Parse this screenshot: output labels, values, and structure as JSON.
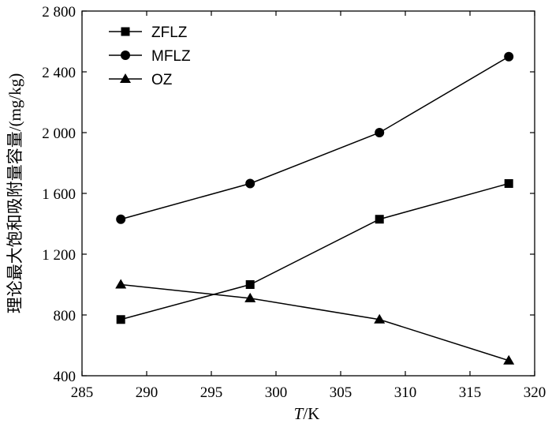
{
  "chart_data": {
    "type": "line",
    "xlabel_italic": "T",
    "xlabel_rest": "/K",
    "ylabel": "理论最大饱和吸附量容量/(mg/kg)",
    "xlim": [
      285,
      320
    ],
    "ylim": [
      400,
      2800
    ],
    "x_ticks": [
      285,
      290,
      295,
      300,
      305,
      310,
      315,
      320
    ],
    "x_tick_labels": [
      "285",
      "290",
      "295",
      "300",
      "305",
      "310",
      "315",
      "320"
    ],
    "y_ticks": [
      400,
      800,
      1200,
      1600,
      2000,
      2400,
      2800
    ],
    "y_tick_labels": [
      "400",
      "800",
      "1 200",
      "1 600",
      "2 000",
      "2 400",
      "2 800"
    ],
    "x": [
      288,
      298,
      308,
      318
    ],
    "series": [
      {
        "name": "ZFLZ",
        "marker": "square",
        "values": [
          770,
          1000,
          1430,
          1665
        ]
      },
      {
        "name": "MFLZ",
        "marker": "circle",
        "values": [
          1430,
          1665,
          2000,
          2500
        ]
      },
      {
        "name": "OZ",
        "marker": "triangle",
        "values": [
          1000,
          910,
          770,
          500
        ]
      }
    ],
    "legend_position": "top-left",
    "grid": false
  }
}
